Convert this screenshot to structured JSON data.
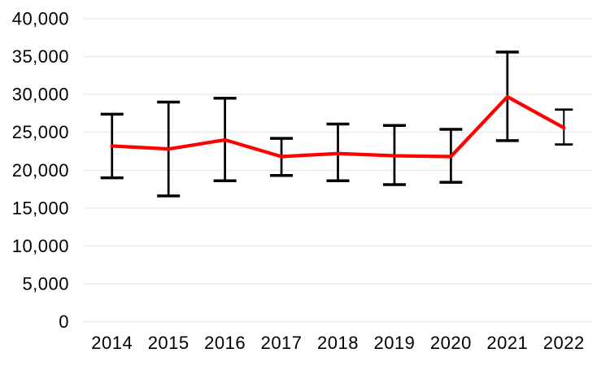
{
  "chart_data": {
    "type": "line",
    "title": "",
    "xlabel": "",
    "ylabel": "",
    "categories": [
      "2014",
      "2015",
      "2016",
      "2017",
      "2018",
      "2019",
      "2020",
      "2021",
      "2022"
    ],
    "series": [
      {
        "color": "#FF0000",
        "values": [
          23200,
          22800,
          24000,
          21800,
          22200,
          21900,
          21800,
          29700,
          25600
        ]
      }
    ],
    "error_bars": {
      "color": "#000000",
      "upper": [
        27400,
        29000,
        29500,
        24200,
        26100,
        25900,
        25400,
        35600,
        28000
      ],
      "lower": [
        19000,
        16600,
        18600,
        19300,
        18600,
        18100,
        18400,
        23900,
        23400
      ]
    },
    "ylim": [
      0,
      40000
    ],
    "ytick_step": 5000,
    "ytick_labels": [
      "0",
      "5,000",
      "10,000",
      "15,000",
      "20,000",
      "25,000",
      "30,000",
      "35,000",
      "40,000"
    ],
    "grid": true,
    "gridline_color": "#D9D9D9",
    "axis_text_color": "#000000",
    "background_color": "#FFFFFF",
    "legend": "none"
  }
}
